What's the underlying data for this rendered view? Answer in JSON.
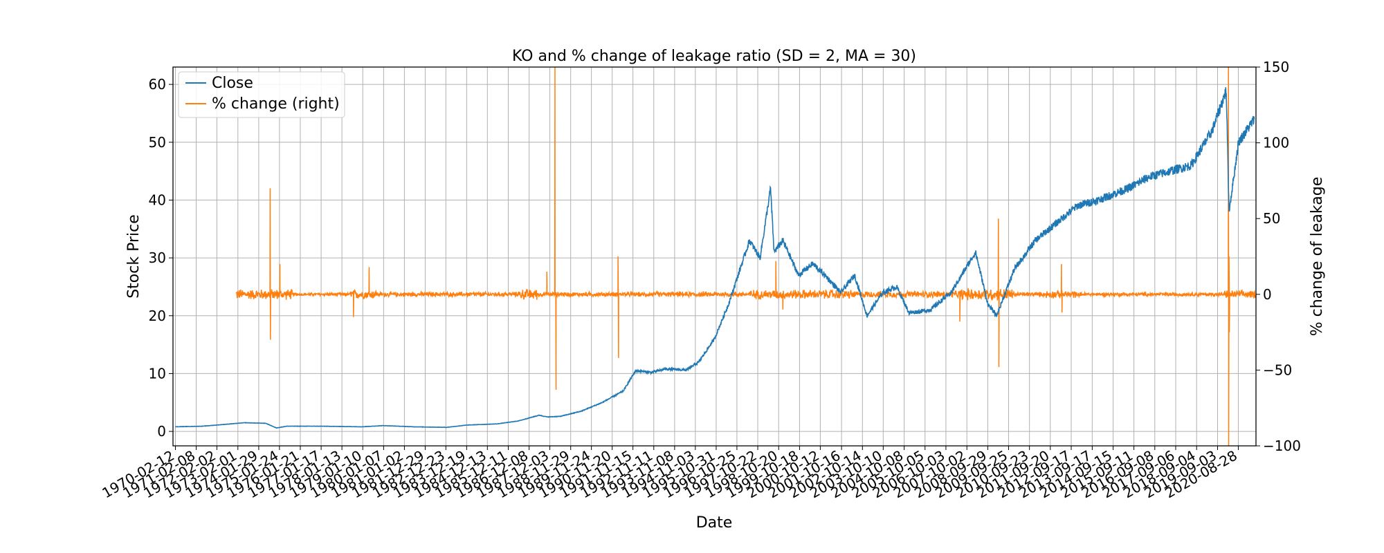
{
  "chart_data": {
    "type": "line",
    "title": "KO and % change of leakage ratio (SD = 2, MA = 30)",
    "xlabel": "Date",
    "ylabel": "Stock Price",
    "ylabel_right": "% change of leakage",
    "x_range": [
      "1970-01-01",
      "2021-07-01"
    ],
    "ylim": [
      -2.5,
      63
    ],
    "ylim_right": [
      -100,
      150
    ],
    "yticks": [
      0,
      10,
      20,
      30,
      40,
      50,
      60
    ],
    "yticks_right": [
      -100,
      -50,
      0,
      50,
      100,
      150
    ],
    "x_tick_labels": [
      "1970-02-12",
      "1971-02-08",
      "1972-02-02",
      "1973-02-01",
      "1974-01-29",
      "1975-01-24",
      "1976-01-21",
      "1977-01-17",
      "1978-01-13",
      "1979-01-10",
      "1980-01-07",
      "1981-01-02",
      "1981-12-29",
      "1982-12-23",
      "1983-12-19",
      "1984-12-13",
      "1985-12-11",
      "1986-12-08",
      "1987-12-03",
      "1988-11-29",
      "1989-11-24",
      "1990-11-20",
      "1991-11-15",
      "1992-11-11",
      "1993-11-08",
      "1994-11-03",
      "1995-10-31",
      "1996-10-25",
      "1997-10-22",
      "1998-10-20",
      "1999-10-18",
      "2000-10-12",
      "2001-10-16",
      "2002-10-14",
      "2003-10-10",
      "2004-10-08",
      "2005-10-05",
      "2006-10-03",
      "2007-10-02",
      "2008-09-29",
      "2009-09-25",
      "2010-09-23",
      "2011-09-20",
      "2012-09-17",
      "2013-09-17",
      "2014-09-15",
      "2015-09-11",
      "2016-09-08",
      "2017-09-06",
      "2018-09-04",
      "2019-09-03",
      "2020-08-28"
    ],
    "grid": true,
    "legend_position": "top-left",
    "colors": {
      "close": "#1f77b4",
      "pct": "#ff7f0e"
    },
    "series": [
      {
        "name": "Close",
        "axis": "left",
        "points": [
          [
            "1970-02-12",
            0.8
          ],
          [
            "1971-06-01",
            0.9
          ],
          [
            "1972-06-01",
            1.2
          ],
          [
            "1973-06-01",
            1.5
          ],
          [
            "1974-06-01",
            1.4
          ],
          [
            "1974-12-01",
            0.6
          ],
          [
            "1975-06-01",
            0.9
          ],
          [
            "1977-01-01",
            0.9
          ],
          [
            "1979-01-01",
            0.8
          ],
          [
            "1980-01-01",
            1.0
          ],
          [
            "1981-06-01",
            0.8
          ],
          [
            "1983-01-01",
            0.7
          ],
          [
            "1984-01-01",
            1.1
          ],
          [
            "1985-06-01",
            1.3
          ],
          [
            "1986-06-01",
            1.8
          ],
          [
            "1987-06-01",
            2.8
          ],
          [
            "1987-10-20",
            2.5
          ],
          [
            "1988-06-01",
            2.6
          ],
          [
            "1989-06-01",
            3.5
          ],
          [
            "1990-06-01",
            5.0
          ],
          [
            "1991-06-01",
            7.0
          ],
          [
            "1992-01-01",
            10.5
          ],
          [
            "1992-10-01",
            10.2
          ],
          [
            "1993-06-01",
            10.8
          ],
          [
            "1994-06-01",
            10.6
          ],
          [
            "1995-01-01",
            12.0
          ],
          [
            "1995-10-01",
            16.0
          ],
          [
            "1996-06-01",
            22.0
          ],
          [
            "1997-06-01",
            33.0
          ],
          [
            "1997-12-01",
            30.0
          ],
          [
            "1998-06-01",
            42.0
          ],
          [
            "1998-08-01",
            31.0
          ],
          [
            "1999-01-01",
            33.0
          ],
          [
            "1999-10-01",
            27.0
          ],
          [
            "2000-06-01",
            29.0
          ],
          [
            "2001-01-01",
            27.0
          ],
          [
            "2001-10-01",
            24.0
          ],
          [
            "2002-06-01",
            27.0
          ],
          [
            "2003-01-01",
            20.0
          ],
          [
            "2003-10-01",
            24.0
          ],
          [
            "2004-06-01",
            25.0
          ],
          [
            "2005-01-01",
            20.5
          ],
          [
            "2006-01-01",
            21.0
          ],
          [
            "2007-01-01",
            24.0
          ],
          [
            "2008-03-01",
            31.0
          ],
          [
            "2008-10-01",
            22.0
          ],
          [
            "2009-03-01",
            20.0
          ],
          [
            "2010-01-01",
            28.0
          ],
          [
            "2011-01-01",
            33.0
          ],
          [
            "2012-01-01",
            36.0
          ],
          [
            "2013-01-01",
            39.0
          ],
          [
            "2014-01-01",
            40.0
          ],
          [
            "2015-06-01",
            42.0
          ],
          [
            "2016-06-01",
            44.0
          ],
          [
            "2017-06-01",
            45.0
          ],
          [
            "2018-06-01",
            46.0
          ],
          [
            "2019-06-01",
            52.0
          ],
          [
            "2020-02-01",
            59.0
          ],
          [
            "2020-03-20",
            38.0
          ],
          [
            "2020-09-01",
            50.0
          ],
          [
            "2021-06-01",
            54.0
          ]
        ]
      },
      {
        "name": "% change (right)",
        "axis": "right",
        "noise_segments": [
          [
            "1973-01-01",
            "1975-09-01",
            4.0
          ],
          [
            "1975-09-01",
            "1978-06-01",
            1.2
          ],
          [
            "1978-06-01",
            "1979-09-01",
            3.5
          ],
          [
            "1979-09-01",
            "1986-06-01",
            1.8
          ],
          [
            "1986-06-01",
            "1987-06-01",
            4.0
          ],
          [
            "1987-06-01",
            "1992-06-01",
            1.8
          ],
          [
            "1992-06-01",
            "1997-06-01",
            2.0
          ],
          [
            "1997-06-01",
            "2002-06-01",
            3.5
          ],
          [
            "2002-06-01",
            "2007-06-01",
            2.5
          ],
          [
            "2007-06-01",
            "2009-12-01",
            4.5
          ],
          [
            "2009-12-01",
            "2011-06-01",
            1.8
          ],
          [
            "2011-06-01",
            "2012-12-01",
            3.0
          ],
          [
            "2012-12-01",
            "2020-01-01",
            1.5
          ],
          [
            "2020-01-01",
            "2021-07-01",
            3.0
          ]
        ],
        "spikes": [
          [
            "1974-08-15",
            70
          ],
          [
            "1974-08-20",
            -30
          ],
          [
            "1975-02-01",
            20
          ],
          [
            "1978-08-01",
            -15
          ],
          [
            "1979-05-01",
            18
          ],
          [
            "1987-10-12",
            15
          ],
          [
            "1988-03-01",
            150
          ],
          [
            "1988-03-20",
            -63
          ],
          [
            "1991-03-01",
            25
          ],
          [
            "1991-03-10",
            -42
          ],
          [
            "1998-09-01",
            22
          ],
          [
            "1999-01-01",
            -10
          ],
          [
            "2007-06-01",
            -18
          ],
          [
            "2009-04-01",
            50
          ],
          [
            "2009-04-10",
            -48
          ],
          [
            "2012-04-01",
            20
          ],
          [
            "2012-04-10",
            -12
          ],
          [
            "2020-03-10",
            150
          ],
          [
            "2020-03-14",
            -100
          ],
          [
            "2020-03-20",
            25
          ],
          [
            "2020-03-25",
            -25
          ]
        ]
      }
    ]
  }
}
